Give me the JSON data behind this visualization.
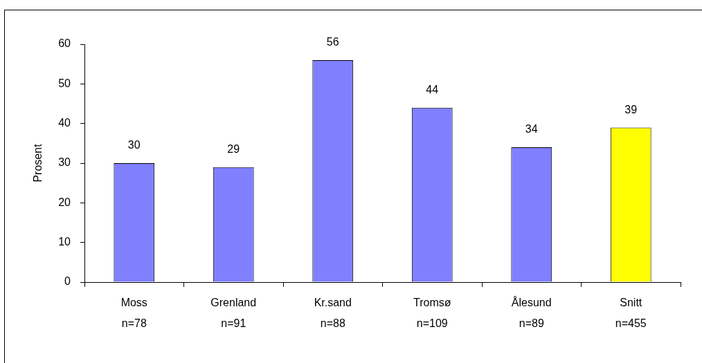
{
  "chart_data": {
    "type": "bar",
    "ylabel": "Prosent",
    "categories": [
      "Moss\nn=78",
      "Grenland\nn=91",
      "Kr.sand\nn=88",
      "Tromsø\nn=109",
      "Ålesund\nn=89",
      "Snitt\nn=455"
    ],
    "values": [
      30,
      29,
      56,
      44,
      34,
      39
    ],
    "colors": [
      "#8080ff",
      "#8080ff",
      "#8080ff",
      "#8080ff",
      "#8080ff",
      "#ffff00"
    ],
    "ylim": [
      0,
      60
    ],
    "yticks": [
      0,
      10,
      20,
      30,
      40,
      50,
      60
    ],
    "data_labels": true
  }
}
